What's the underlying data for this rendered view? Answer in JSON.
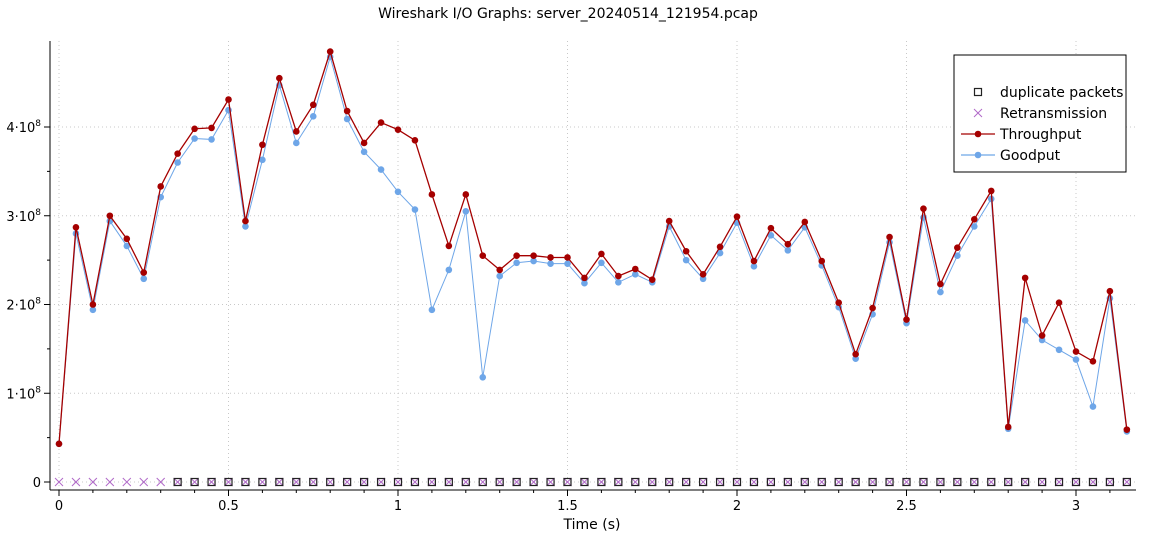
{
  "chart_data": {
    "type": "line",
    "title": "Wireshark I/O Graphs: server_20240514_121954.pcap",
    "xlabel": "Time (s)",
    "ylabel": "",
    "xlim": [
      -0.03,
      3.16
    ],
    "ylim": [
      -10000000.0,
      490000000.0
    ],
    "x_ticks": [
      0,
      0.5,
      1,
      1.5,
      2,
      2.5,
      3
    ],
    "x_tick_labels": [
      "0",
      "0.5",
      "1",
      "1.5",
      "2",
      "2.5",
      "3"
    ],
    "y_ticks": [
      0,
      100000000.0,
      200000000.0,
      300000000.0,
      400000000.0
    ],
    "y_tick_labels": [
      {
        "base": "0",
        "exp": ""
      },
      {
        "base": "1·10",
        "exp": "8"
      },
      {
        "base": "2·10",
        "exp": "8"
      },
      {
        "base": "3·10",
        "exp": "8"
      },
      {
        "base": "4·10",
        "exp": "8"
      }
    ],
    "grid": true,
    "legend_position": "top-right",
    "x": [
      0,
      0.05,
      0.1,
      0.15,
      0.2,
      0.25,
      0.3,
      0.35,
      0.4,
      0.45,
      0.5,
      0.55,
      0.6,
      0.65,
      0.7,
      0.75,
      0.8,
      0.85,
      0.9,
      0.95,
      1.0,
      1.05,
      1.1,
      1.15,
      1.2,
      1.25,
      1.3,
      1.35,
      1.4,
      1.45,
      1.5,
      1.55,
      1.6,
      1.65,
      1.7,
      1.75,
      1.8,
      1.85,
      1.9,
      1.95,
      2.0,
      2.05,
      2.1,
      2.15,
      2.2,
      2.25,
      2.3,
      2.35,
      2.4,
      2.45,
      2.5,
      2.55,
      2.6,
      2.65,
      2.7,
      2.75,
      2.8,
      2.85,
      2.9,
      2.95,
      3.0,
      3.05,
      3.1,
      3.15
    ],
    "series": [
      {
        "name": "duplicate packets",
        "style": "square-markers",
        "color": "#222222",
        "x_start": 0.35,
        "values": [
          null,
          null,
          null,
          null,
          null,
          null,
          null,
          0,
          0,
          0,
          0,
          0,
          0,
          0,
          0,
          0,
          0,
          0,
          0,
          0,
          0,
          0,
          0,
          0,
          0,
          0,
          0,
          0,
          0,
          0,
          0,
          0,
          0,
          0,
          0,
          0,
          0,
          0,
          0,
          0,
          0,
          0,
          0,
          0,
          0,
          0,
          0,
          0,
          0,
          0,
          0,
          0,
          0,
          0,
          0,
          0,
          0,
          0,
          0,
          0,
          0,
          0,
          0,
          0
        ]
      },
      {
        "name": "Retransmission",
        "style": "x-markers",
        "color": "#b069c8",
        "values": [
          0,
          0,
          0,
          0,
          0,
          0,
          0,
          0,
          0,
          0,
          0,
          0,
          0,
          0,
          0,
          0,
          0,
          0,
          0,
          0,
          0,
          0,
          0,
          0,
          0,
          0,
          0,
          0,
          0,
          0,
          0,
          0,
          0,
          0,
          0,
          0,
          0,
          0,
          0,
          0,
          0,
          0,
          0,
          0,
          0,
          0,
          0,
          0,
          0,
          0,
          0,
          0,
          0,
          0,
          0,
          0,
          0,
          0,
          0,
          0,
          0,
          0,
          0,
          0
        ]
      },
      {
        "name": "Throughput",
        "style": "line-dots",
        "color": "#a50000",
        "values": [
          43000000.0,
          287000000.0,
          200000000.0,
          300000000.0,
          274000000.0,
          236000000.0,
          333000000.0,
          370000000.0,
          398000000.0,
          399000000.0,
          431000000.0,
          294000000.0,
          380000000.0,
          455000000.0,
          395000000.0,
          425000000.0,
          485000000.0,
          418000000.0,
          382000000.0,
          405000000.0,
          397000000.0,
          385000000.0,
          324000000.0,
          266000000.0,
          324000000.0,
          255000000.0,
          239000000.0,
          255000000.0,
          255000000.0,
          253000000.0,
          253000000.0,
          230000000.0,
          257000000.0,
          232000000.0,
          240000000.0,
          228000000.0,
          294000000.0,
          260000000.0,
          234000000.0,
          265000000.0,
          299000000.0,
          249000000.0,
          286000000.0,
          268000000.0,
          293000000.0,
          249000000.0,
          202000000.0,
          144000000.0,
          196000000.0,
          276000000.0,
          183000000.0,
          308000000.0,
          223000000.0,
          264000000.0,
          296000000.0,
          328000000.0,
          62000000.0,
          230000000.0,
          165000000.0,
          202000000.0,
          147000000.0,
          136000000.0,
          215000000.0,
          59000000.0
        ]
      },
      {
        "name": "Goodput",
        "style": "line-dots",
        "color": "#6ea6e8",
        "values": [
          43000000.0,
          280000000.0,
          194000000.0,
          294000000.0,
          266000000.0,
          229000000.0,
          321000000.0,
          360000000.0,
          387000000.0,
          386000000.0,
          419000000.0,
          288000000.0,
          363000000.0,
          447000000.0,
          382000000.0,
          412000000.0,
          479000000.0,
          409000000.0,
          372000000.0,
          352000000.0,
          327000000.0,
          307000000.0,
          194000000.0,
          239000000.0,
          305000000.0,
          118000000.0,
          232000000.0,
          247000000.0,
          249000000.0,
          246000000.0,
          246000000.0,
          224000000.0,
          247000000.0,
          225000000.0,
          234000000.0,
          225000000.0,
          288000000.0,
          250000000.0,
          229000000.0,
          258000000.0,
          292000000.0,
          243000000.0,
          278000000.0,
          261000000.0,
          287000000.0,
          244000000.0,
          197000000.0,
          139000000.0,
          189000000.0,
          270000000.0,
          179000000.0,
          298000000.0,
          214000000.0,
          255000000.0,
          288000000.0,
          319000000.0,
          60000000.0,
          182000000.0,
          160000000.0,
          149000000.0,
          138000000.0,
          85000000.0,
          207000000.0,
          57000000.0
        ]
      }
    ]
  }
}
